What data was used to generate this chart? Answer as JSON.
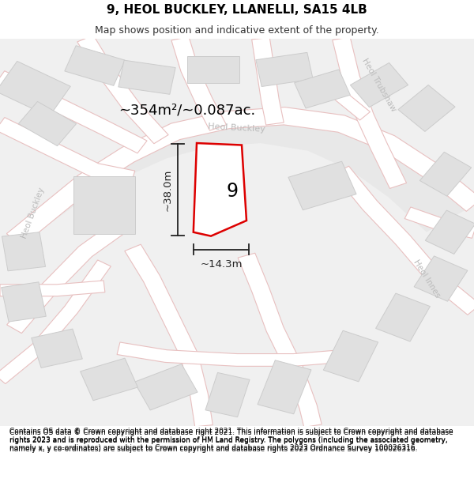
{
  "title": "9, HEOL BUCKLEY, LLANELLI, SA15 4LB",
  "subtitle": "Map shows position and indicative extent of the property.",
  "area_text": "~354m²/~0.087ac.",
  "dim_height": "~38.0m",
  "dim_width": "~14.3m",
  "label_number": "9",
  "road_label_buckley_center": "Heol Buckley",
  "road_label_heol_buckley_left": "Heol Buckley",
  "road_label_trubshaw": "Heol Trubshaw",
  "road_label_innes": "Heol Innes",
  "footer": "Contains OS data © Crown copyright and database right 2021. This information is subject to Crown copyright and database rights 2023 and is reproduced with the permission of HM Land Registry. The polygons (including the associated geometry, namely x, y co-ordinates) are subject to Crown copyright and database rights 2023 Ordnance Survey 100026316.",
  "map_bg": "#f0f0f0",
  "road_fill": "#ffffff",
  "road_border": "#e8c0c0",
  "block_fill": "#e0e0e0",
  "block_border": "#cccccc",
  "central_fill": "#e8e8e8",
  "plot_border": "#dd0000",
  "dim_color": "#222222",
  "road_label_color": "#bbbbbb",
  "title_fontsize": 11,
  "subtitle_fontsize": 9,
  "footer_fontsize": 6.5
}
